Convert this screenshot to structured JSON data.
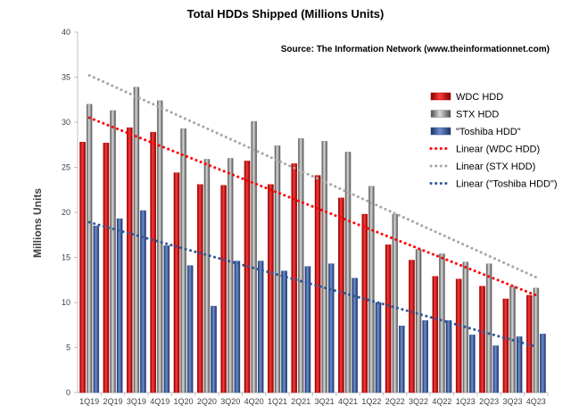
{
  "chart_data": {
    "type": "bar",
    "title": "Total HDDs Shipped (Millions Units)",
    "subtitle": "Source: The Information Network (www.theinformationnet.com)",
    "xlabel": "",
    "ylabel": "Millions Units",
    "ylim": [
      0,
      40
    ],
    "yticks": [
      0,
      5,
      10,
      15,
      20,
      25,
      30,
      35,
      40
    ],
    "grid": false,
    "legend_position": "right",
    "categories": [
      "1Q19",
      "2Q19",
      "3Q19",
      "4Q19",
      "1Q20",
      "2Q20",
      "3Q20",
      "4Q20",
      "1Q21",
      "2Q21",
      "3Q21",
      "4Q21",
      "1Q22",
      "2Q22",
      "3Q22",
      "4Q22",
      "1Q23",
      "2Q23",
      "3Q23",
      "4Q23"
    ],
    "series": [
      {
        "name": "WDC HDD",
        "color": "#cc0000",
        "values": [
          27.8,
          27.7,
          29.4,
          28.9,
          24.4,
          23.1,
          23.0,
          25.7,
          23.1,
          25.4,
          24.1,
          21.6,
          19.8,
          16.4,
          14.7,
          12.9,
          12.6,
          11.8,
          10.4,
          10.8
        ]
      },
      {
        "name": "STX HDD",
        "color": "#8c8c8c",
        "values": [
          32.0,
          31.3,
          33.9,
          32.4,
          29.3,
          25.9,
          26.0,
          30.1,
          27.4,
          28.2,
          27.9,
          26.7,
          22.9,
          19.8,
          15.9,
          15.4,
          14.5,
          14.3,
          11.8,
          11.6
        ]
      },
      {
        "name": "\"Toshiba HDD\"",
        "color": "#2f5597",
        "values": [
          18.5,
          19.3,
          20.2,
          16.3,
          14.1,
          9.6,
          14.6,
          14.6,
          13.5,
          14.0,
          14.3,
          12.7,
          10.0,
          7.4,
          8.0,
          8.0,
          6.4,
          5.2,
          6.2,
          6.5
        ]
      }
    ],
    "trendlines": [
      {
        "name": "Linear (WDC HDD)",
        "color": "#ff0000",
        "start": 30.5,
        "end": 10.8
      },
      {
        "name": "Linear (STX HDD)",
        "color": "#a6a6a6",
        "start": 35.2,
        "end": 12.8
      },
      {
        "name": "Linear (\"Toshiba HDD\")",
        "color": "#2f5597",
        "start": 18.9,
        "end": 5.1
      }
    ]
  }
}
